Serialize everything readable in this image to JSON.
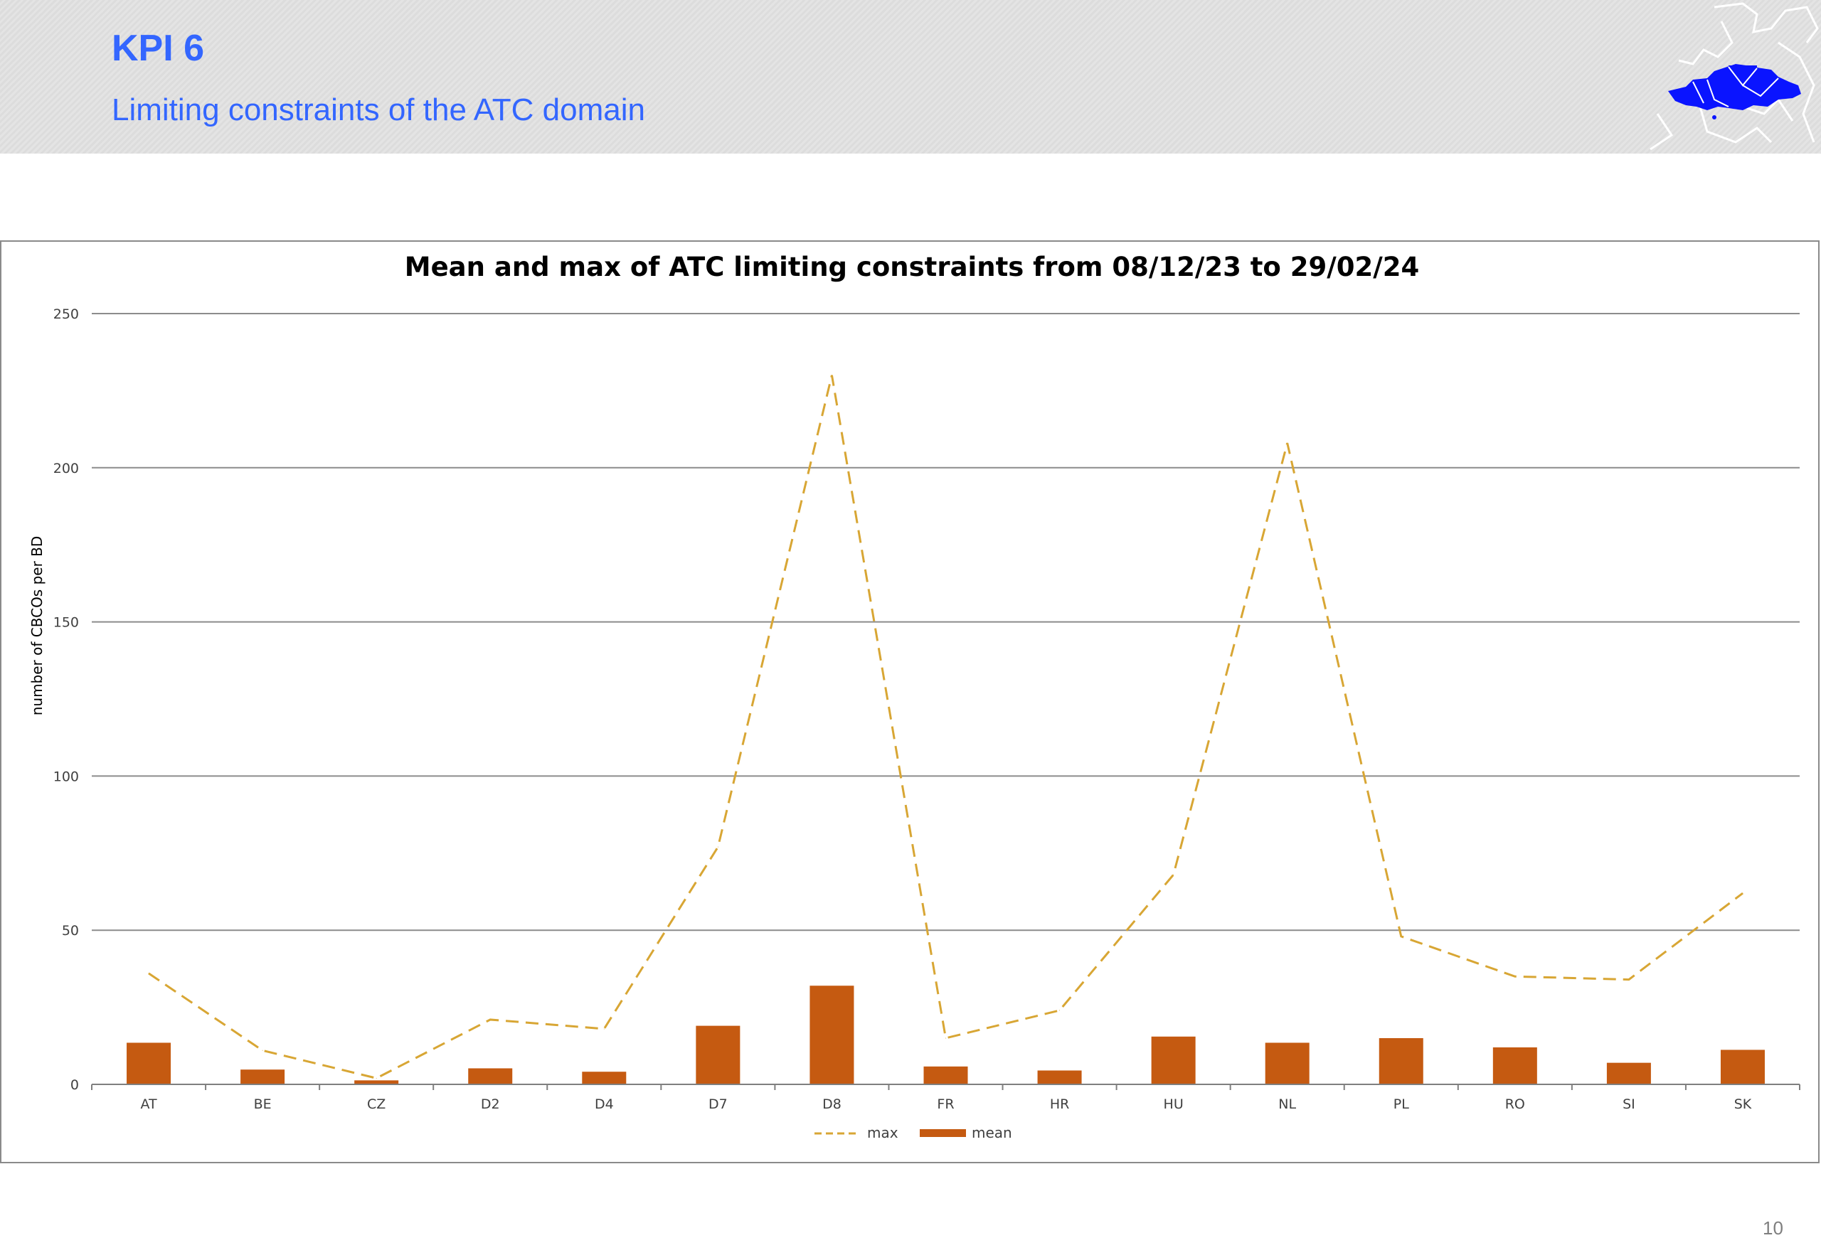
{
  "header": {
    "title": "KPI 6",
    "subtitle": "Limiting constraints of the ATC domain"
  },
  "page": {
    "number": "10"
  },
  "colors": {
    "accent": "#3366ff",
    "max_line": "#d8a634",
    "mean_bar": "#c55a11",
    "gridline": "#8c8c8c"
  },
  "icons": {
    "logo": "europe-map-logo"
  },
  "chart_data": {
    "type": "bar",
    "title": "Mean and max of ATC limiting constraints from 08/12/23 to 29/02/24",
    "xlabel": "",
    "ylabel": "number of CBCOs per BD",
    "ylim": [
      0,
      250
    ],
    "yticks": [
      0,
      50,
      100,
      150,
      200,
      250
    ],
    "grid": true,
    "legend": "bottom",
    "categories": [
      "AT",
      "BE",
      "CZ",
      "D2",
      "D4",
      "D7",
      "D8",
      "FR",
      "HR",
      "HU",
      "NL",
      "PL",
      "RO",
      "SI",
      "SK"
    ],
    "series": [
      {
        "name": "max",
        "kind": "line",
        "style": "dashed",
        "color": "#d8a634",
        "values": [
          36,
          11,
          2,
          21,
          18,
          77,
          230,
          15,
          24,
          68,
          208,
          48,
          35,
          34,
          62
        ]
      },
      {
        "name": "mean",
        "kind": "bar",
        "color": "#c55a11",
        "values": [
          13.5,
          4.8,
          1.3,
          5.2,
          4.1,
          19,
          32,
          5.8,
          4.5,
          15.5,
          13.5,
          15,
          12,
          7,
          11.2
        ]
      }
    ]
  }
}
